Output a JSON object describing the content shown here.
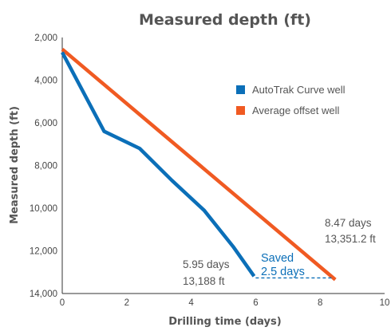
{
  "chart_data": {
    "type": "line",
    "title": "Measured depth (ft)",
    "xlabel": "Drilling time (days)",
    "ylabel": "Measured depth (ft)",
    "xlim": [
      0,
      10
    ],
    "ylim": [
      2000,
      14000
    ],
    "y_inverted": true,
    "x_ticks": [
      "0",
      "2",
      "4",
      "6",
      "8",
      "10"
    ],
    "y_ticks": [
      "2,000",
      "4,000",
      "6,000",
      "8,000",
      "10,000",
      "12,000",
      "14,000"
    ],
    "grid": false,
    "legend_position": "top-right",
    "series": [
      {
        "name": "AutoTrak Curve well",
        "color": "#0b6fb8",
        "x": [
          0,
          1.3,
          2.4,
          3.4,
          4.4,
          5.3,
          5.95
        ],
        "y": [
          2700,
          6400,
          7200,
          8700,
          10100,
          11800,
          13188
        ]
      },
      {
        "name": "Average offset well",
        "color": "#f05a22",
        "x": [
          0,
          8.47
        ],
        "y": [
          2550,
          13351.2
        ]
      }
    ],
    "annotations": {
      "autotrak_days": "5.95 days",
      "autotrak_depth": "13,188 ft",
      "offset_days": "8.47 days",
      "offset_depth": "13,351.2 ft",
      "saved_line1": "Saved",
      "saved_line2": "2.5 days"
    }
  }
}
